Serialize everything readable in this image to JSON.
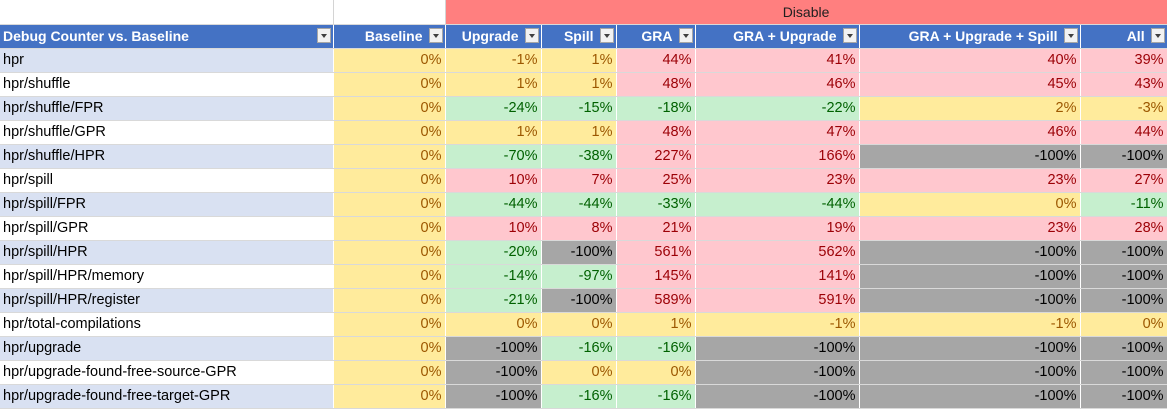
{
  "group_header": "Disable",
  "columns": [
    "Debug Counter vs. Baseline",
    "Baseline",
    "Upgrade",
    "Spill",
    "GRA",
    "GRA + Upgrade",
    "GRA + Upgrade + Spill",
    "All"
  ],
  "rows": [
    {
      "name": "hpr",
      "values": [
        "0%",
        "-1%",
        "1%",
        "44%",
        "41%",
        "40%",
        "39%"
      ],
      "styles": [
        "y",
        "y",
        "y",
        "r",
        "r",
        "r",
        "r"
      ]
    },
    {
      "name": "hpr/shuffle",
      "values": [
        "0%",
        "1%",
        "1%",
        "48%",
        "46%",
        "45%",
        "43%"
      ],
      "styles": [
        "y",
        "y",
        "y",
        "r",
        "r",
        "r",
        "r"
      ]
    },
    {
      "name": "hpr/shuffle/FPR",
      "values": [
        "0%",
        "-24%",
        "-15%",
        "-18%",
        "-22%",
        "2%",
        "-3%"
      ],
      "styles": [
        "y",
        "g",
        "g",
        "g",
        "g",
        "y",
        "y"
      ]
    },
    {
      "name": "hpr/shuffle/GPR",
      "values": [
        "0%",
        "1%",
        "1%",
        "48%",
        "47%",
        "46%",
        "44%"
      ],
      "styles": [
        "y",
        "y",
        "y",
        "r",
        "r",
        "r",
        "r"
      ]
    },
    {
      "name": "hpr/shuffle/HPR",
      "values": [
        "0%",
        "-70%",
        "-38%",
        "227%",
        "166%",
        "-100%",
        "-100%"
      ],
      "styles": [
        "y",
        "g",
        "g",
        "r",
        "r",
        "k",
        "k"
      ]
    },
    {
      "name": "hpr/spill",
      "values": [
        "0%",
        "10%",
        "7%",
        "25%",
        "23%",
        "23%",
        "27%"
      ],
      "styles": [
        "y",
        "r",
        "r",
        "r",
        "r",
        "r",
        "r"
      ]
    },
    {
      "name": "hpr/spill/FPR",
      "values": [
        "0%",
        "-44%",
        "-44%",
        "-33%",
        "-44%",
        "0%",
        "-11%"
      ],
      "styles": [
        "y",
        "g",
        "g",
        "g",
        "g",
        "y",
        "g"
      ]
    },
    {
      "name": "hpr/spill/GPR",
      "values": [
        "0%",
        "10%",
        "8%",
        "21%",
        "19%",
        "23%",
        "28%"
      ],
      "styles": [
        "y",
        "r",
        "r",
        "r",
        "r",
        "r",
        "r"
      ]
    },
    {
      "name": "hpr/spill/HPR",
      "values": [
        "0%",
        "-20%",
        "-100%",
        "561%",
        "562%",
        "-100%",
        "-100%"
      ],
      "styles": [
        "y",
        "g",
        "k",
        "r",
        "r",
        "k",
        "k"
      ]
    },
    {
      "name": "hpr/spill/HPR/memory",
      "values": [
        "0%",
        "-14%",
        "-97%",
        "145%",
        "141%",
        "-100%",
        "-100%"
      ],
      "styles": [
        "y",
        "g",
        "g",
        "r",
        "r",
        "k",
        "k"
      ]
    },
    {
      "name": "hpr/spill/HPR/register",
      "values": [
        "0%",
        "-21%",
        "-100%",
        "589%",
        "591%",
        "-100%",
        "-100%"
      ],
      "styles": [
        "y",
        "g",
        "k",
        "r",
        "r",
        "k",
        "k"
      ]
    },
    {
      "name": "hpr/total-compilations",
      "values": [
        "0%",
        "0%",
        "0%",
        "1%",
        "-1%",
        "-1%",
        "0%"
      ],
      "styles": [
        "y",
        "y",
        "y",
        "y",
        "y",
        "y",
        "y"
      ]
    },
    {
      "name": "hpr/upgrade",
      "values": [
        "0%",
        "-100%",
        "-16%",
        "-16%",
        "-100%",
        "-100%",
        "-100%"
      ],
      "styles": [
        "y",
        "k",
        "g",
        "g",
        "k",
        "k",
        "k"
      ]
    },
    {
      "name": "hpr/upgrade-found-free-source-GPR",
      "values": [
        "0%",
        "-100%",
        "0%",
        "0%",
        "-100%",
        "-100%",
        "-100%"
      ],
      "styles": [
        "y",
        "k",
        "y",
        "y",
        "k",
        "k",
        "k"
      ]
    },
    {
      "name": "hpr/upgrade-found-free-target-GPR",
      "values": [
        "0%",
        "-100%",
        "-16%",
        "-16%",
        "-100%",
        "-100%",
        "-100%"
      ],
      "styles": [
        "y",
        "k",
        "g",
        "g",
        "k",
        "k",
        "k"
      ]
    }
  ],
  "colors": {
    "header": "#4472c4",
    "disable": "#ff7f7f",
    "yellow": "#ffeb9c",
    "green": "#c6efce",
    "red": "#ffc7ce",
    "gray": "#a6a6a6"
  }
}
